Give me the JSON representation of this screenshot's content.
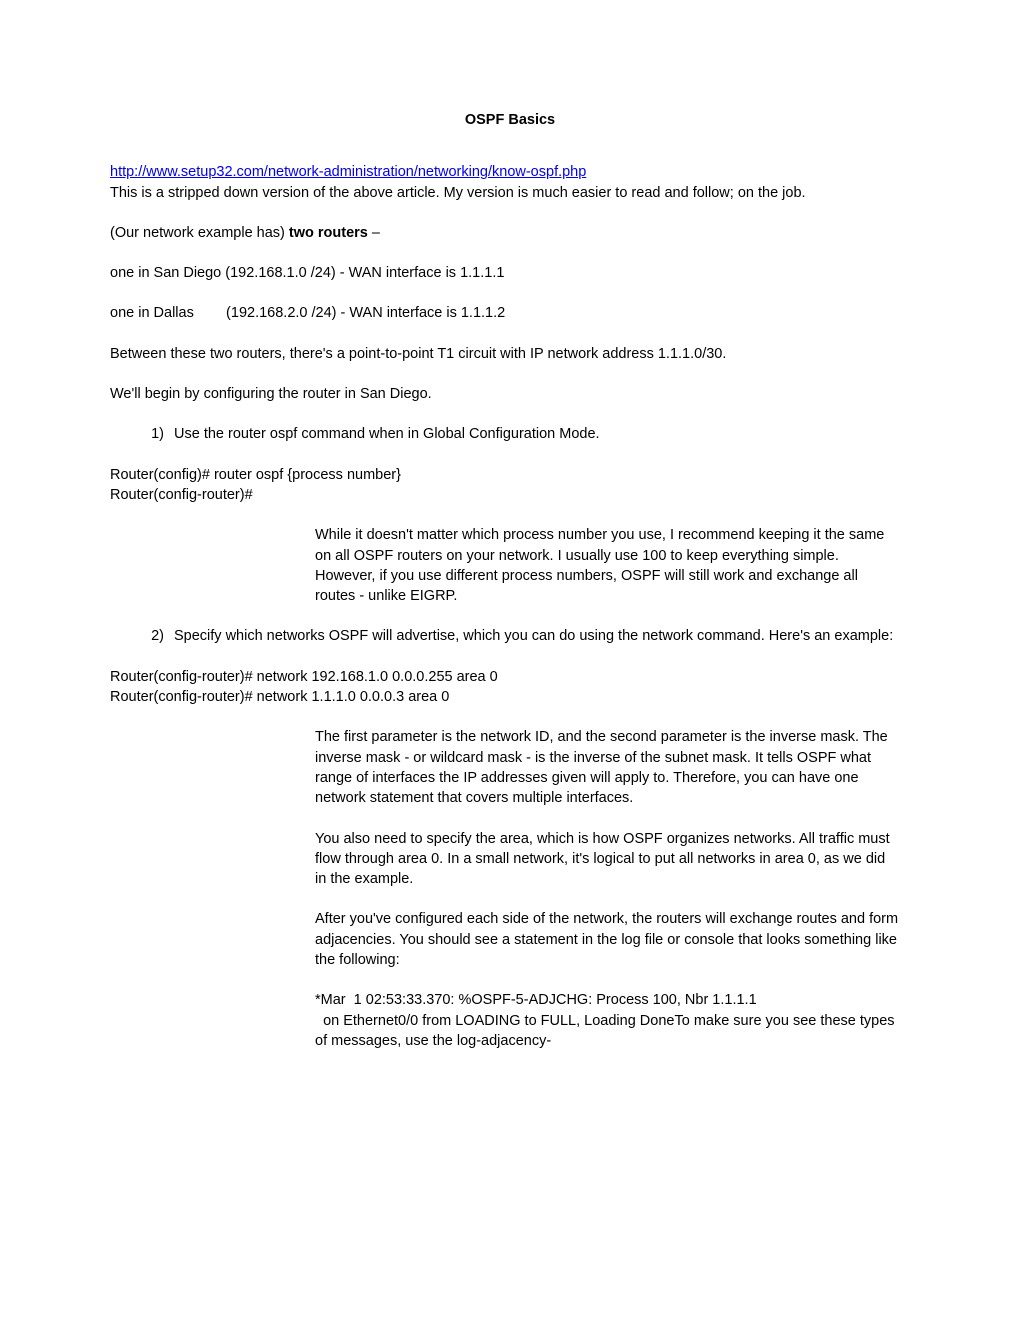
{
  "title": "OSPF Basics",
  "link": {
    "text": "http://www.setup32.com/network-administration/networking/know-ospf.php",
    "href": "http://www.setup32.com/network-administration/networking/know-ospf.php"
  },
  "intro1": "This is a stripped down version of the above article. My version is much easier to read and follow; on the job.",
  "intro2a": "(Our network example has) ",
  "intro2b": "two routers",
  "intro2c": " –",
  "sd_line": "one in San Diego (192.168.1.0 /24) - WAN interface is 1.1.1.1",
  "dal_line": "one in Dallas        (192.168.2.0 /24) - WAN interface is 1.1.1.2",
  "between": "Between these two routers, there's a point-to-point T1 circuit with IP network address 1.1.1.0/30.",
  "begin": "We'll begin by configuring the router in San Diego.",
  "step1_num": "1)",
  "step1": "Use the router ospf command when in Global Configuration Mode.",
  "cmd1a": "Router(config)# router ospf {process number}",
  "cmd1b": "Router(config-router)#",
  "note1": "While it doesn't matter which process number you use, I recommend keeping it the same on all OSPF routers on your network. I usually use 100 to keep everything simple. However, if you use different process numbers, OSPF will still work and exchange all routes - unlike EIGRP.",
  "step2_num": "2)",
  "step2": "Specify which networks OSPF will advertise, which you can do using the network command. Here's an example:",
  "cmd2a": "Router(config-router)# network 192.168.1.0 0.0.0.255 area 0",
  "cmd2b": "Router(config-router)# network 1.1.1.0 0.0.0.3 area 0",
  "note2a": "The first parameter is the network ID, and the second parameter is the inverse mask. The inverse mask - or wildcard mask - is the inverse of the subnet mask. It tells OSPF what range of interfaces the IP addresses given will apply to. Therefore, you can have one network statement that covers multiple interfaces.",
  "note2b": "You also need to specify the area, which is how OSPF organizes networks. All traffic must flow through area 0. In a small network, it's logical to put all networks in area 0, as we did in the example.",
  "note2c": "After you've configured each side of the network, the routers will exchange routes and form adjacencies. You should see a statement in the log file or console that looks something like the following:",
  "log1": "*Mar  1 02:53:33.370: %OSPF-5-ADJCHG: Process 100, Nbr 1.1.1.1",
  "log2": "  on Ethernet0/0 from LOADING to FULL, Loading DoneTo make sure you see these types of messages, use the log-adjacency-"
}
